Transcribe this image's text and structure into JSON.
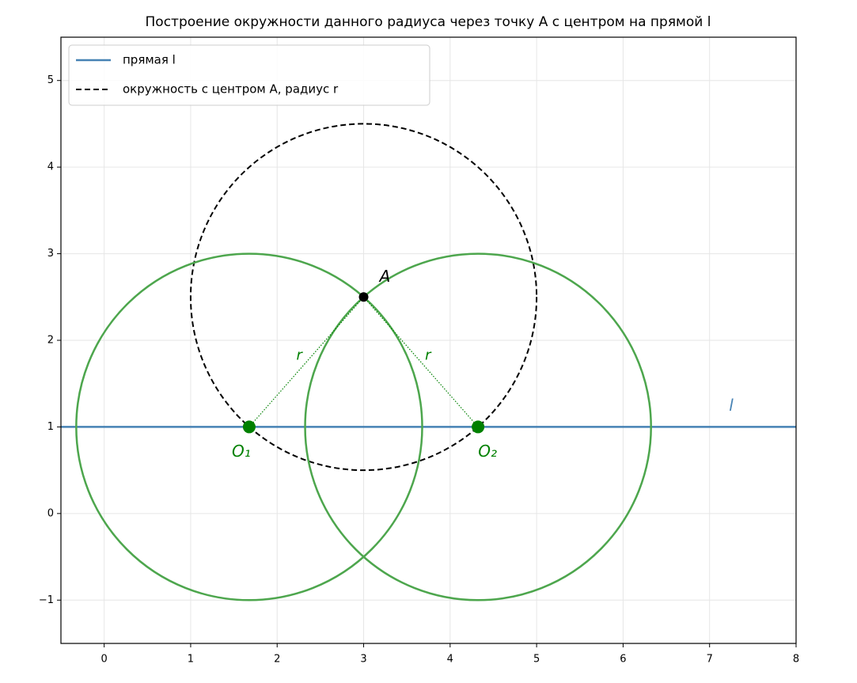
{
  "chart_data": {
    "type": "construction",
    "title": "Построение окружности данного радиуса через точку A с центром на прямой l",
    "xlim": [
      -0.5,
      8
    ],
    "ylim": [
      -1.5,
      5.5
    ],
    "xticks": [
      0,
      1,
      2,
      3,
      4,
      5,
      6,
      7,
      8
    ],
    "yticks": [
      {
        "value": -1,
        "label": "−1"
      },
      0,
      1,
      2,
      3,
      4,
      5
    ],
    "grid": true,
    "legend": "upper left",
    "series": [
      {
        "name": "прямая l",
        "kind": "hline",
        "color": "#4682b4",
        "y": 1
      },
      {
        "name": "окружность с центром A, радиус r",
        "kind": "circle",
        "color": "#000000",
        "dashed": true,
        "center": [
          3,
          2.5
        ],
        "radius": 2
      }
    ],
    "line_label": "l",
    "circles": [
      {
        "center": [
          1.677,
          1
        ],
        "radius": 2,
        "color": "#4da64d"
      },
      {
        "center": [
          4.323,
          1
        ],
        "radius": 2,
        "color": "#4da64d"
      }
    ],
    "points": [
      {
        "label": "A",
        "x": 3,
        "y": 2.5,
        "color": "#000000"
      },
      {
        "label": "O₁",
        "x": 1.677,
        "y": 1,
        "color": "#008000"
      },
      {
        "label": "O₂",
        "x": 4.323,
        "y": 1,
        "color": "#008000"
      }
    ],
    "segments": [
      {
        "from": 0,
        "to": 1,
        "label": "r",
        "color": "#008000"
      },
      {
        "from": 0,
        "to": 2,
        "label": "r",
        "color": "#008000"
      }
    ]
  }
}
